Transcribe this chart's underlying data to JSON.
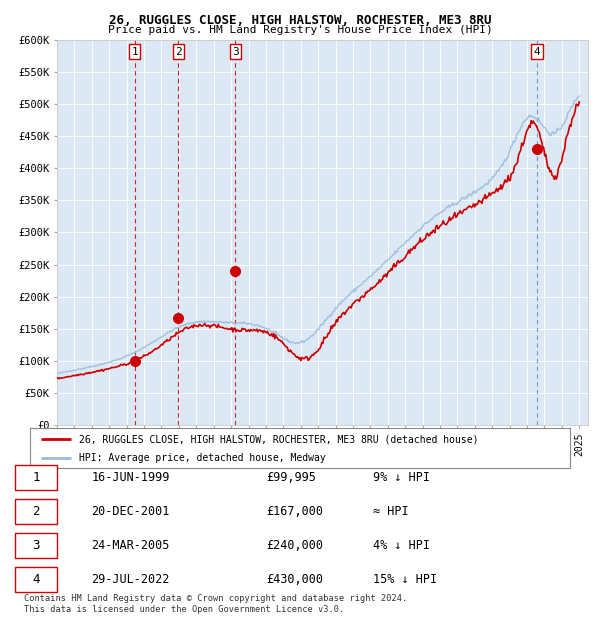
{
  "title1": "26, RUGGLES CLOSE, HIGH HALSTOW, ROCHESTER, ME3 8RU",
  "title2": "Price paid vs. HM Land Registry's House Price Index (HPI)",
  "plot_bg_color": "#dce9f5",
  "line1_color": "#cc0000",
  "line2_color": "#99bbdd",
  "vline_color": "#cc0000",
  "vline4_color": "#99bbdd",
  "ylim": [
    0,
    600000
  ],
  "yticks": [
    0,
    50000,
    100000,
    150000,
    200000,
    250000,
    300000,
    350000,
    400000,
    450000,
    500000,
    550000,
    600000
  ],
  "ytick_labels": [
    "£0",
    "£50K",
    "£100K",
    "£150K",
    "£200K",
    "£250K",
    "£300K",
    "£350K",
    "£400K",
    "£450K",
    "£500K",
    "£550K",
    "£600K"
  ],
  "sale_dates": [
    1999.46,
    2001.97,
    2005.23,
    2022.57
  ],
  "sale_prices": [
    99995,
    167000,
    240000,
    430000
  ],
  "sale_labels": [
    "1",
    "2",
    "3",
    "4"
  ],
  "footer_text": "Contains HM Land Registry data © Crown copyright and database right 2024.\nThis data is licensed under the Open Government Licence v3.0.",
  "legend_line1": "26, RUGGLES CLOSE, HIGH HALSTOW, ROCHESTER, ME3 8RU (detached house)",
  "legend_line2": "HPI: Average price, detached house, Medway",
  "table_data": [
    [
      "1",
      "16-JUN-1999",
      "£99,995",
      "9% ↓ HPI"
    ],
    [
      "2",
      "20-DEC-2001",
      "£167,000",
      "≈ HPI"
    ],
    [
      "3",
      "24-MAR-2005",
      "£240,000",
      "4% ↓ HPI"
    ],
    [
      "4",
      "29-JUL-2022",
      "£430,000",
      "15% ↓ HPI"
    ]
  ]
}
